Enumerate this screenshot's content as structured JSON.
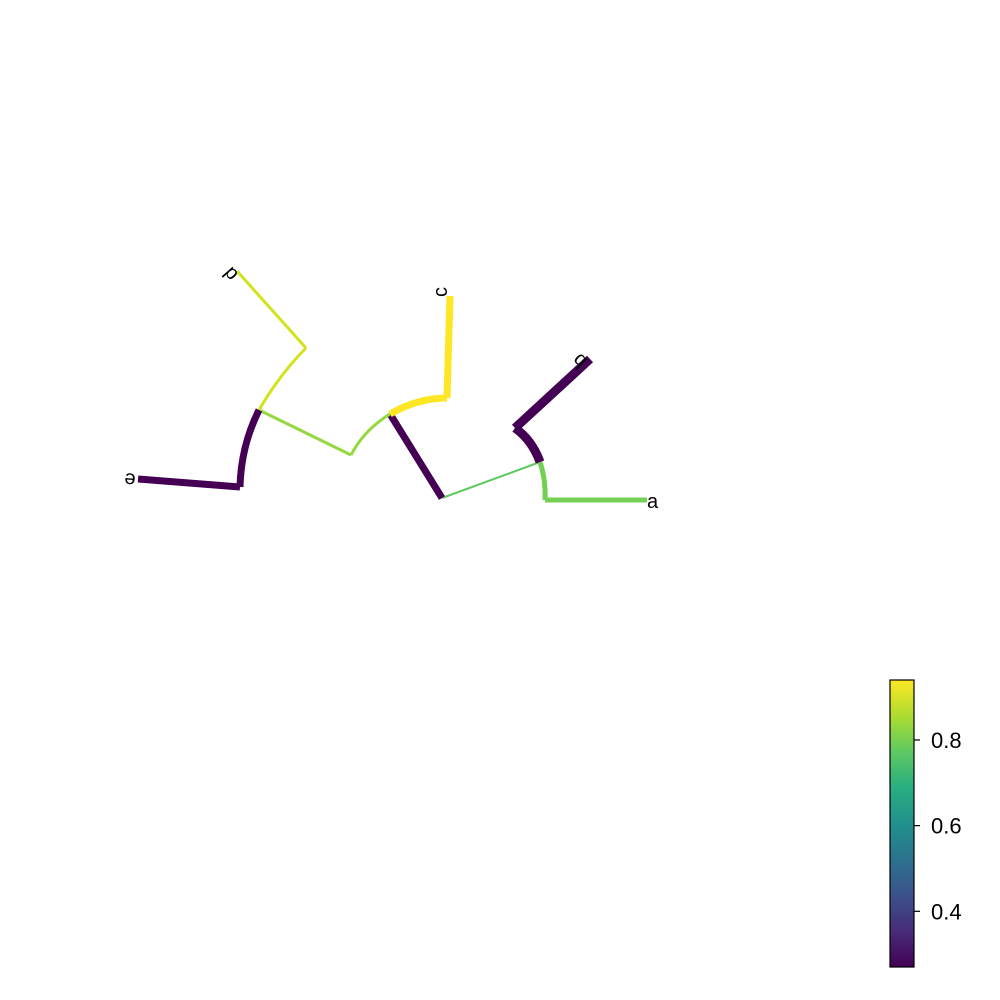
{
  "tree": {
    "tips": [
      "a",
      "b",
      "c",
      "d",
      "e"
    ],
    "branch_colors": {
      "dark_purple": "#440154",
      "green": "#73d055",
      "light_green": "#95d840",
      "yellow_green": "#d2e21b",
      "yellow": "#fde725",
      "mid_green": "#5ec962"
    }
  },
  "colorbar": {
    "ticks": [
      "0.4",
      "0.6",
      "0.8"
    ],
    "colormap": "viridis",
    "range_min": 0.27,
    "range_max": 0.94
  }
}
